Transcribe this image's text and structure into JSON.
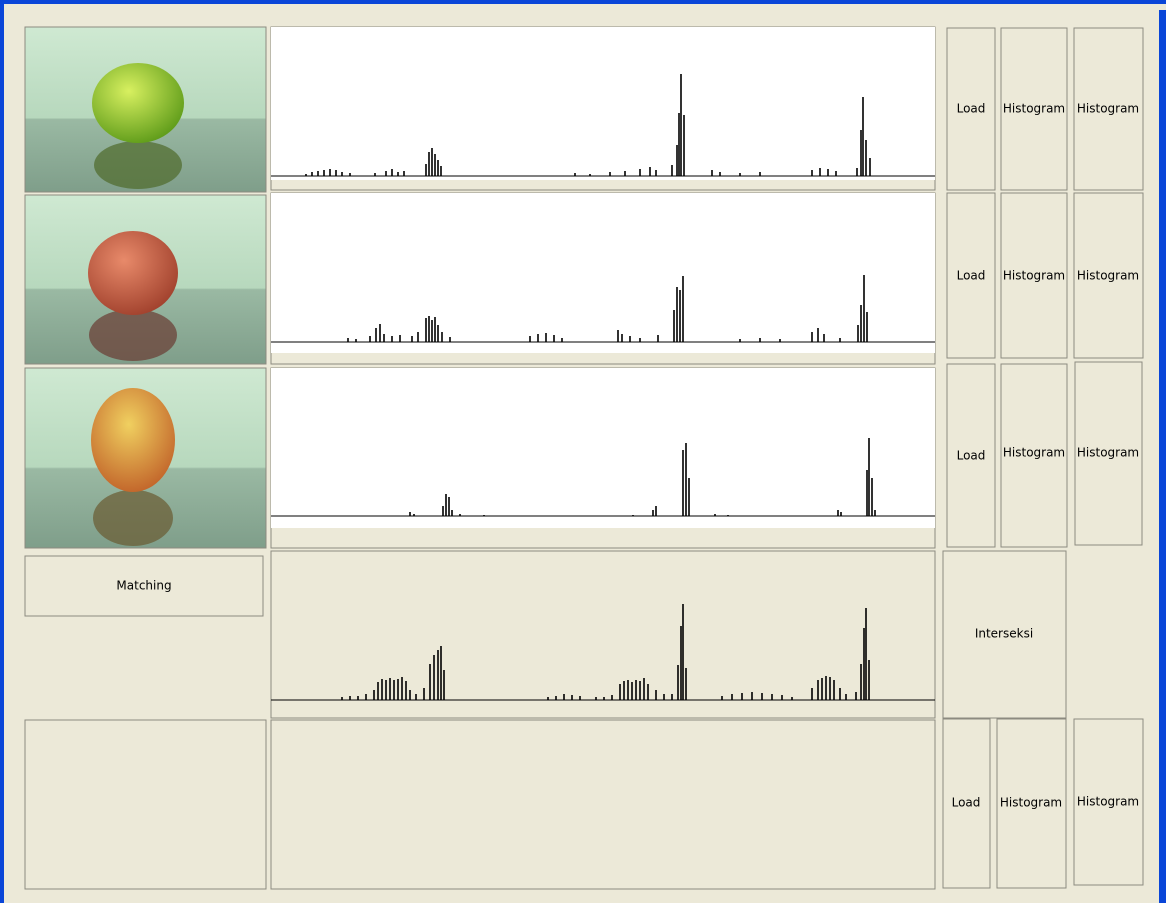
{
  "rows": [
    {
      "load": "Load",
      "histogram_1": "Histogram",
      "histogram_2": "Histogram"
    },
    {
      "load": "Load",
      "histogram_1": "Histogram",
      "histogram_2": "Histogram"
    },
    {
      "load": "Load",
      "histogram_1": "Histogram",
      "histogram_2": "Histogram"
    }
  ],
  "matching": "Matching",
  "interseksi": "Interseksi",
  "bottom": {
    "load": "Load",
    "histogram_1": "Histogram",
    "histogram_2": "Histogram"
  }
}
